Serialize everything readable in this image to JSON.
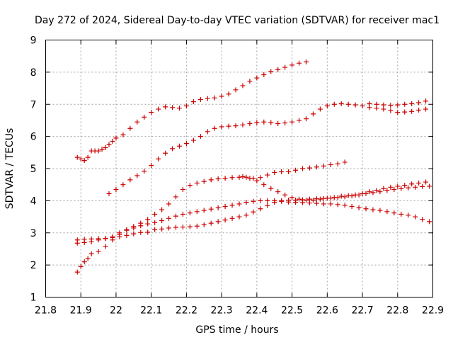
{
  "chart_data": {
    "type": "scatter",
    "title": "Day 272 of 2024, Sidereal Day-to-day VTEC variation (SDTVAR) for receiver mac1",
    "xlabel": "GPS time / hours",
    "ylabel": "SDTVAR / TECUs",
    "xlim": [
      21.8,
      22.9
    ],
    "ylim": [
      1,
      9
    ],
    "xticks": [
      "21.8",
      "21.9",
      "22",
      "22.1",
      "22.2",
      "22.3",
      "22.4",
      "22.5",
      "22.6",
      "22.7",
      "22.8",
      "22.9"
    ],
    "yticks": [
      "1",
      "2",
      "3",
      "4",
      "5",
      "6",
      "7",
      "8",
      "9"
    ],
    "grid": true,
    "marker": "+",
    "marker_color": "#cc0000",
    "series": [
      {
        "x": [
          21.89,
          21.9,
          21.91,
          21.92,
          21.93,
          21.94,
          21.95,
          21.96,
          21.97,
          21.98,
          21.99,
          22.0,
          22.02,
          22.04,
          22.06,
          22.08,
          22.1,
          22.12,
          22.14,
          22.16,
          22.18,
          22.2,
          22.22,
          22.24,
          22.26,
          22.28,
          22.3,
          22.32,
          22.34,
          22.36,
          22.38,
          22.4,
          22.42,
          22.44,
          22.46,
          22.48,
          22.5,
          22.52,
          22.54
        ],
        "y": [
          5.35,
          5.3,
          5.25,
          5.35,
          5.55,
          5.55,
          5.55,
          5.6,
          5.65,
          5.75,
          5.85,
          5.95,
          6.05,
          6.25,
          6.45,
          6.6,
          6.75,
          6.85,
          6.92,
          6.9,
          6.88,
          6.95,
          7.08,
          7.15,
          7.18,
          7.2,
          7.25,
          7.32,
          7.45,
          7.58,
          7.72,
          7.82,
          7.92,
          8.02,
          8.08,
          8.15,
          8.22,
          8.28,
          8.32
        ]
      },
      {
        "x": [
          21.98,
          22.0,
          22.02,
          22.04,
          22.06,
          22.08,
          22.1,
          22.12,
          22.14,
          22.16,
          22.18,
          22.2,
          22.22,
          22.24,
          22.26,
          22.28,
          22.3,
          22.32,
          22.34,
          22.36,
          22.38,
          22.4,
          22.42,
          22.44,
          22.46,
          22.48,
          22.5,
          22.52,
          22.54,
          22.56,
          22.58,
          22.6,
          22.62,
          22.64,
          22.66,
          22.68,
          22.7,
          22.72,
          22.74,
          22.76,
          22.78,
          22.8,
          22.82,
          22.84,
          22.86,
          22.88
        ],
        "y": [
          4.22,
          4.35,
          4.5,
          4.65,
          4.78,
          4.92,
          5.1,
          5.3,
          5.48,
          5.62,
          5.7,
          5.78,
          5.88,
          6.0,
          6.15,
          6.25,
          6.3,
          6.32,
          6.33,
          6.36,
          6.4,
          6.43,
          6.45,
          6.43,
          6.4,
          6.42,
          6.45,
          6.5,
          6.55,
          6.7,
          6.85,
          6.95,
          7.0,
          7.02,
          7.0,
          6.98,
          6.95,
          6.9,
          6.88,
          6.85,
          6.8,
          6.75,
          6.76,
          6.78,
          6.82,
          6.85
        ]
      },
      {
        "x": [
          21.89,
          21.91,
          21.93,
          21.95,
          21.97,
          21.99,
          22.01,
          22.03,
          22.05,
          22.07,
          22.09,
          22.11,
          22.13,
          22.15,
          22.17,
          22.19,
          22.21,
          22.23,
          22.25,
          22.27,
          22.29,
          22.31,
          22.33,
          22.35,
          22.37,
          22.39,
          22.41,
          22.43,
          22.45,
          22.47,
          22.49,
          22.51,
          22.53,
          22.55,
          22.57,
          22.59,
          22.61,
          22.63,
          22.65
        ],
        "y": [
          2.68,
          2.7,
          2.72,
          2.78,
          2.82,
          2.88,
          3.0,
          3.1,
          3.2,
          3.3,
          3.42,
          3.58,
          3.72,
          3.9,
          4.12,
          4.35,
          4.48,
          4.55,
          4.6,
          4.65,
          4.68,
          4.7,
          4.72,
          4.73,
          4.73,
          4.7,
          4.72,
          4.8,
          4.88,
          4.9,
          4.9,
          4.95,
          5.0,
          5.02,
          5.05,
          5.08,
          5.12,
          5.15,
          5.2
        ]
      },
      {
        "x": [
          21.89,
          21.9,
          21.91,
          21.92,
          21.93,
          21.95,
          21.97,
          21.99,
          22.01,
          22.03,
          22.05,
          22.07,
          22.09,
          22.11,
          22.13,
          22.15,
          22.17,
          22.19,
          22.21,
          22.23,
          22.25,
          22.27,
          22.29,
          22.31,
          22.33,
          22.35,
          22.37,
          22.39,
          22.41,
          22.43,
          22.45,
          22.47,
          22.49,
          22.51,
          22.53,
          22.55,
          22.57,
          22.59,
          22.61,
          22.63,
          22.65,
          22.67,
          22.69,
          22.71,
          22.73,
          22.75,
          22.77,
          22.79,
          22.81,
          22.83,
          22.85,
          22.87,
          22.89
        ],
        "y": [
          1.78,
          1.95,
          2.1,
          2.2,
          2.35,
          2.42,
          2.58,
          2.78,
          2.95,
          3.08,
          3.15,
          3.22,
          3.28,
          3.32,
          3.38,
          3.45,
          3.52,
          3.58,
          3.62,
          3.66,
          3.7,
          3.74,
          3.78,
          3.82,
          3.86,
          3.9,
          3.95,
          3.98,
          4.0,
          4.0,
          4.0,
          3.98,
          3.96,
          3.95,
          3.94,
          3.93,
          3.92,
          3.9,
          3.9,
          3.88,
          3.86,
          3.82,
          3.78,
          3.75,
          3.72,
          3.7,
          3.66,
          3.62,
          3.58,
          3.55,
          3.5,
          3.42,
          3.35
        ]
      },
      {
        "x": [
          21.89,
          21.91,
          21.93,
          21.95,
          21.97,
          21.99,
          22.01,
          22.03,
          22.05,
          22.07,
          22.09,
          22.11,
          22.13,
          22.15,
          22.17,
          22.19,
          22.21,
          22.23,
          22.25,
          22.27,
          22.29,
          22.31,
          22.33,
          22.35,
          22.37,
          22.39,
          22.41,
          22.43,
          22.45,
          22.47,
          22.49,
          22.51,
          22.53,
          22.55,
          22.57,
          22.59,
          22.61,
          22.63,
          22.65,
          22.67,
          22.69,
          22.71,
          22.73,
          22.75,
          22.77,
          22.79,
          22.81,
          22.83,
          22.85,
          22.87,
          22.89
        ],
        "y": [
          2.78,
          2.8,
          2.81,
          2.82,
          2.83,
          2.85,
          2.88,
          2.92,
          2.97,
          3.01,
          3.02,
          3.1,
          3.12,
          3.15,
          3.17,
          3.18,
          3.19,
          3.21,
          3.25,
          3.3,
          3.35,
          3.4,
          3.45,
          3.5,
          3.55,
          3.65,
          3.75,
          3.85,
          3.95,
          4.0,
          4.02,
          4.02,
          4.03,
          4.05,
          4.06,
          4.07,
          4.08,
          4.1,
          4.12,
          4.15,
          4.18,
          4.22,
          4.25,
          4.28,
          4.32,
          4.35,
          4.38,
          4.4,
          4.42,
          4.44,
          4.45
        ]
      },
      {
        "x": [
          22.36,
          22.38,
          22.4,
          22.42,
          22.44,
          22.46,
          22.48,
          22.5,
          22.52,
          22.54,
          22.56,
          22.58,
          22.6,
          22.62,
          22.64,
          22.66,
          22.68,
          22.7,
          22.72,
          22.74,
          22.76,
          22.78,
          22.8,
          22.82,
          22.84,
          22.86,
          22.88
        ],
        "y": [
          4.75,
          4.7,
          4.62,
          4.5,
          4.38,
          4.28,
          4.18,
          4.1,
          4.05,
          4.02,
          4.02,
          4.05,
          4.08,
          4.1,
          4.14,
          4.16,
          4.18,
          4.22,
          4.28,
          4.32,
          4.38,
          4.42,
          4.45,
          4.48,
          4.52,
          4.55,
          4.58
        ]
      },
      {
        "x": [
          22.72,
          22.74,
          22.76,
          22.78,
          22.8,
          22.82,
          22.84,
          22.86,
          22.88
        ],
        "y": [
          7.02,
          7.0,
          6.98,
          6.97,
          6.98,
          7.0,
          7.02,
          7.05,
          7.1
        ]
      }
    ]
  }
}
